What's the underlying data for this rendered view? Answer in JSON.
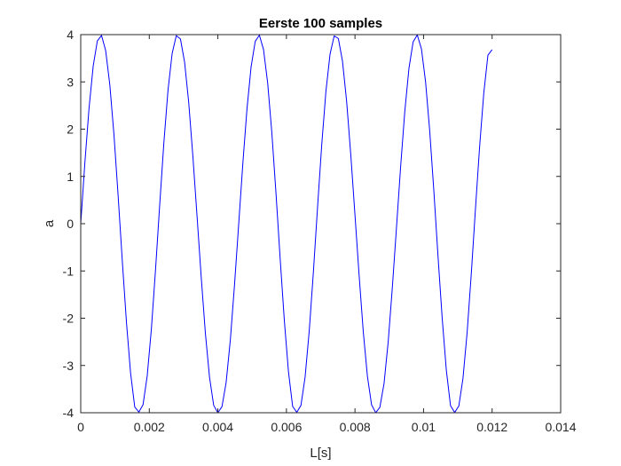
{
  "chart_data": {
    "type": "line",
    "title": "Eerste 100 samples",
    "xlabel": "L[s]",
    "ylabel": "a",
    "xlim": [
      0,
      0.014
    ],
    "ylim": [
      -4,
      4
    ],
    "xticks": [
      0,
      0.002,
      0.004,
      0.006,
      0.008,
      0.01,
      0.012,
      0.014
    ],
    "xtick_labels": [
      "0",
      "0.002",
      "0.004",
      "0.006",
      "0.008",
      "0.01",
      "0.012",
      "0.014"
    ],
    "yticks": [
      -4,
      -3,
      -2,
      -1,
      0,
      1,
      2,
      3,
      4
    ],
    "ytick_labels": [
      "-4",
      "-3",
      "-2",
      "-1",
      "0",
      "1",
      "2",
      "3",
      "4"
    ],
    "grid": false,
    "series": [
      {
        "color": "#0000ff",
        "x": [
          0,
          0.0001212,
          0.0002424,
          0.0003636,
          0.0004848,
          0.000606,
          0.0007272,
          0.0008484,
          0.0009696,
          0.0010908,
          0.001212,
          0.0013332,
          0.0014544,
          0.0015756,
          0.0016968,
          0.001818,
          0.0019392,
          0.0020604,
          0.0021816,
          0.0023028,
          0.002424,
          0.0025452,
          0.0026664,
          0.0027876,
          0.0029088,
          0.00303,
          0.0031512,
          0.0032724,
          0.0033936,
          0.0035148,
          0.003636,
          0.0037572,
          0.0038784,
          0.0039996,
          0.0041208,
          0.004242,
          0.0043632,
          0.0044844,
          0.0046056,
          0.0047268,
          0.004848,
          0.0049692,
          0.0050904,
          0.0052116,
          0.0053328,
          0.005454,
          0.0055752,
          0.0056964,
          0.0058176,
          0.0059388,
          0.00606,
          0.0061812,
          0.0063024,
          0.0064236,
          0.0065448,
          0.006666,
          0.0067872,
          0.0069084,
          0.0070296,
          0.0071508,
          0.007272,
          0.0073932,
          0.0075144,
          0.0076356,
          0.0077568,
          0.007878,
          0.0079992,
          0.0081204,
          0.0082416,
          0.0083628,
          0.008484,
          0.0086052,
          0.0087264,
          0.0088476,
          0.0089688,
          0.00909,
          0.0092112,
          0.0093324,
          0.0094536,
          0.0095748,
          0.009696,
          0.0098172,
          0.0099384,
          0.0100596,
          0.0101808,
          0.010302,
          0.0104232,
          0.0105444,
          0.0106656,
          0.0107868,
          0.010908,
          0.0110292,
          0.0111504,
          0.0112716,
          0.0113928,
          0.011514,
          0.0116352,
          0.0117564,
          0.0118776,
          0.0119988
        ],
        "y": [
          0,
          1.291,
          2.444,
          3.335,
          3.867,
          3.983,
          3.664,
          2.94,
          1.881,
          0.594,
          -0.783,
          -2.08,
          -3.161,
          -3.879,
          -3.985,
          -3.829,
          -3.22,
          -2.231,
          -0.977,
          0.391,
          1.701,
          2.817,
          3.601,
          3.978,
          3.908,
          3.417,
          2.554,
          1.416,
          0.15,
          -1.133,
          -2.317,
          -3.252,
          -3.844,
          -4.0,
          -3.87,
          -3.358,
          -2.466,
          -1.311,
          -0.035,
          1.255,
          2.415,
          3.315,
          3.858,
          3.988,
          3.682,
          2.97,
          1.918,
          0.635,
          -0.742,
          -2.044,
          -3.135,
          -3.866,
          -3.99,
          -3.844,
          -3.246,
          -2.265,
          -1.017,
          0.35,
          1.664,
          2.789,
          3.584,
          3.973,
          3.918,
          3.438,
          2.585,
          1.454,
          0.19,
          -1.093,
          -2.284,
          -3.229,
          -3.833,
          -3.999,
          -3.883,
          -3.382,
          -2.498,
          -1.35,
          -0.075,
          1.214,
          2.38,
          3.291,
          3.847,
          3.993,
          3.698,
          2.998,
          1.955,
          0.676,
          -0.701,
          -2.008,
          -3.107,
          -3.85,
          -3.994,
          -3.857,
          -3.271,
          -2.299,
          -1.057,
          0.31,
          1.627,
          2.758,
          3.565,
          3.682
        ]
      }
    ]
  }
}
